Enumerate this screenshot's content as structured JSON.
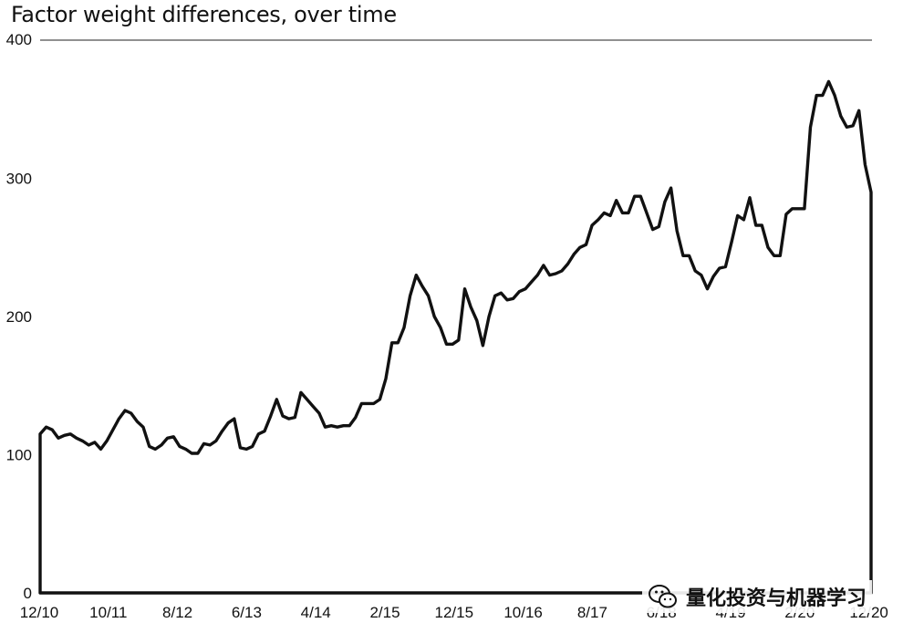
{
  "chart_data": {
    "type": "line",
    "title": "Factor weight differences, over time",
    "xlabel": "",
    "ylabel": "",
    "ylim": [
      0,
      400
    ],
    "yticks": [
      0,
      100,
      200,
      300,
      400
    ],
    "xtick_labels": [
      "12/10",
      "10/11",
      "8/12",
      "6/13",
      "4/14",
      "2/15",
      "12/15",
      "10/16",
      "8/17",
      "6/18",
      "4/19",
      "2/20",
      "12/20"
    ],
    "grid": "top line at 400 only",
    "series": [
      {
        "values": [
          115,
          120,
          118,
          112,
          114,
          115,
          112,
          110,
          107,
          109,
          104,
          110,
          118,
          126,
          132,
          130,
          124,
          120,
          106,
          104,
          107,
          112,
          113,
          106,
          104,
          101,
          101,
          108,
          107,
          110,
          117,
          123,
          126,
          105,
          104,
          106,
          115,
          117,
          128,
          140,
          128,
          126,
          127,
          145,
          140,
          135,
          130,
          120,
          121,
          120,
          121,
          121,
          127,
          137,
          137,
          137,
          140,
          155,
          181,
          181,
          192,
          215,
          230,
          222,
          215,
          200,
          192,
          180,
          180,
          183,
          220,
          207,
          197,
          179,
          200,
          215,
          217,
          212,
          213,
          218,
          220,
          225,
          230,
          237,
          230,
          231,
          233,
          238,
          245,
          250,
          252,
          266,
          270,
          275,
          273,
          284,
          275,
          275,
          287,
          287,
          275,
          263,
          265,
          283,
          293,
          262,
          244,
          244,
          233,
          230,
          220,
          229,
          235,
          236,
          254,
          273,
          270,
          286,
          266,
          266,
          250,
          244,
          244,
          274,
          278,
          278,
          278,
          337,
          360,
          360,
          370,
          360,
          345,
          337,
          338,
          349,
          310,
          290
        ]
      }
    ]
  },
  "watermark": {
    "text": "量化投资与机器学习",
    "icon": "wechat-icon"
  }
}
